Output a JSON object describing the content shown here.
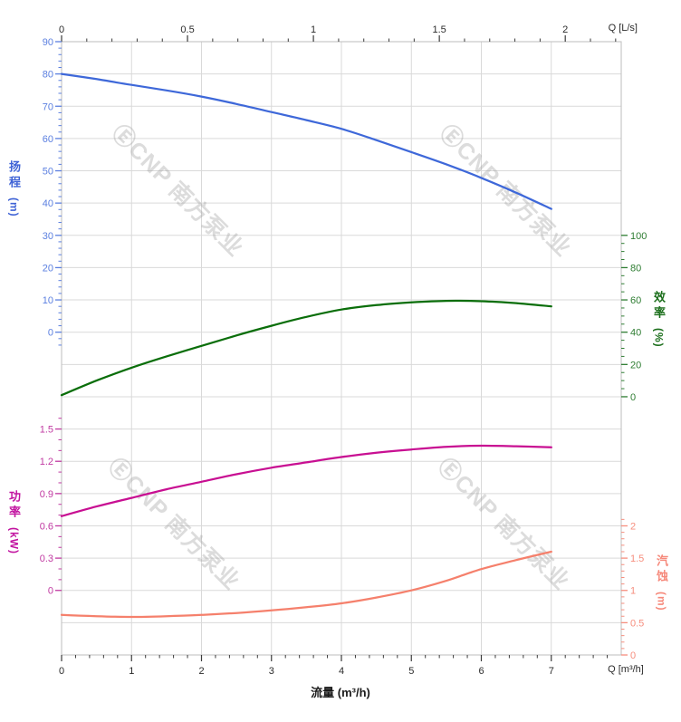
{
  "watermark": {
    "text": "ⒺCNP 南方泵业",
    "color": "#9a9a9a"
  },
  "labels": {
    "q_top_unit": "Q [L/s]",
    "q_bottom_unit": "Q [m³/h]",
    "flow_axis_title": "流量 (m³/h)"
  },
  "palette": {
    "grid": "#d9d9d9",
    "frame": "#bdbdbd",
    "black_tick": "#3a3a3a",
    "black_text": "#2b2b2b"
  },
  "chart_data": {
    "type": "line",
    "title": "",
    "xlabel": "流量 (m³/h)",
    "x_range_m3h": [
      0,
      8
    ],
    "top_axis": {
      "unit": "Q [L/s]",
      "tick_labels": [
        "0",
        "0.5",
        "1",
        "1.5",
        "2"
      ],
      "tick_values_lps": [
        0,
        0.5,
        1,
        1.5,
        2
      ],
      "minor_step_lps": 0.1,
      "minor_max_lps": 2.2,
      "m3h_per_lps": 3.6
    },
    "bottom_axis": {
      "unit": "Q [m³/h]",
      "title": "流量 (m³/h)",
      "tick_labels": [
        "0",
        "1",
        "2",
        "3",
        "4",
        "5",
        "6",
        "7"
      ],
      "tick_values": [
        0,
        1,
        2,
        3,
        4,
        5,
        6,
        7
      ],
      "minor_step": 0.2,
      "minor_max": 7.8
    },
    "series": [
      {
        "name": "head",
        "title": "扬程",
        "unit": "(m)",
        "side": "left",
        "curve_color": "#3E68D9",
        "text_color": "#5C80E0",
        "title_color": "#3F63D6",
        "axis": {
          "max_value": 90,
          "row_of_max": 0,
          "value_per_row": 10,
          "tick_labels": [
            "90",
            "80",
            "70",
            "60",
            "50",
            "40",
            "30",
            "20",
            "10",
            "0"
          ],
          "tick_values": [
            90,
            80,
            70,
            60,
            50,
            40,
            30,
            20,
            10,
            0
          ],
          "minor_step": 2,
          "minor_range": [
            -4,
            90
          ]
        },
        "x": [
          0,
          0.5,
          1,
          1.5,
          2,
          2.5,
          3,
          3.5,
          4,
          4.5,
          5,
          5.5,
          6,
          6.5,
          7
        ],
        "values": [
          80,
          78.4,
          76.6,
          74.9,
          73,
          70.7,
          68.2,
          65.7,
          63,
          59.5,
          55.8,
          52,
          47.8,
          43.2,
          38.2
        ]
      },
      {
        "name": "efficiency",
        "title": "效率",
        "unit": "(%)",
        "side": "right",
        "curve_color": "#0A6E0A",
        "text_color": "#2E7D32",
        "title_color": "#1B6E1B",
        "axis": {
          "max_value": 100,
          "row_of_max": 6,
          "value_per_row": 20,
          "tick_labels": [
            "100",
            "80",
            "60",
            "40",
            "20",
            "0"
          ],
          "tick_values": [
            100,
            80,
            60,
            40,
            20,
            0
          ],
          "minor_step": 5,
          "minor_range": [
            0,
            100
          ]
        },
        "x": [
          0,
          0.5,
          1,
          1.5,
          2,
          2.5,
          3,
          3.5,
          4,
          4.5,
          5,
          5.5,
          6,
          6.5,
          7
        ],
        "values": [
          1,
          10,
          18,
          25,
          31.5,
          38,
          44,
          49.5,
          54,
          56.8,
          58.5,
          59.4,
          59.2,
          58,
          56
        ]
      },
      {
        "name": "power",
        "title": "功率",
        "unit": "(kW)",
        "side": "left",
        "curve_color": "#C80F92",
        "text_color": "#C13AA2",
        "title_color": "#C214A0",
        "axis": {
          "max_value": 1.5,
          "row_of_max": 12,
          "value_per_row": 0.3,
          "tick_labels": [
            "1.5",
            "1.2",
            "0.9",
            "0.6",
            "0.3",
            "0"
          ],
          "tick_values": [
            1.5,
            1.2,
            0.9,
            0.6,
            0.3,
            0
          ],
          "minor_step": 0.1,
          "minor_range": [
            0,
            1.6
          ]
        },
        "x": [
          0,
          0.5,
          1,
          1.5,
          2,
          2.5,
          3,
          3.5,
          4,
          4.5,
          5,
          5.5,
          6,
          6.5,
          7
        ],
        "values": [
          0.69,
          0.78,
          0.86,
          0.94,
          1.01,
          1.08,
          1.14,
          1.19,
          1.24,
          1.28,
          1.31,
          1.335,
          1.345,
          1.34,
          1.33
        ]
      },
      {
        "name": "npsh",
        "title": "汽蚀",
        "unit": "(m)",
        "side": "right",
        "curve_color": "#F5806C",
        "text_color": "#F68E7E",
        "title_color": "#F6897B",
        "axis": {
          "max_value": 2,
          "row_of_max": 15,
          "value_per_row": 0.5,
          "tick_labels": [
            "2",
            "1.5",
            "1",
            "0.5",
            "0"
          ],
          "tick_values": [
            2,
            1.5,
            1,
            0.5,
            0
          ],
          "minor_step": 0.1,
          "minor_range": [
            0,
            2.1
          ]
        },
        "x": [
          0,
          0.5,
          1,
          1.5,
          2,
          2.5,
          3,
          3.5,
          4,
          4.5,
          5,
          5.5,
          6,
          6.5,
          7
        ],
        "values": [
          0.62,
          0.6,
          0.59,
          0.6,
          0.62,
          0.65,
          0.69,
          0.74,
          0.8,
          0.89,
          1,
          1.15,
          1.33,
          1.47,
          1.6
        ]
      }
    ]
  }
}
